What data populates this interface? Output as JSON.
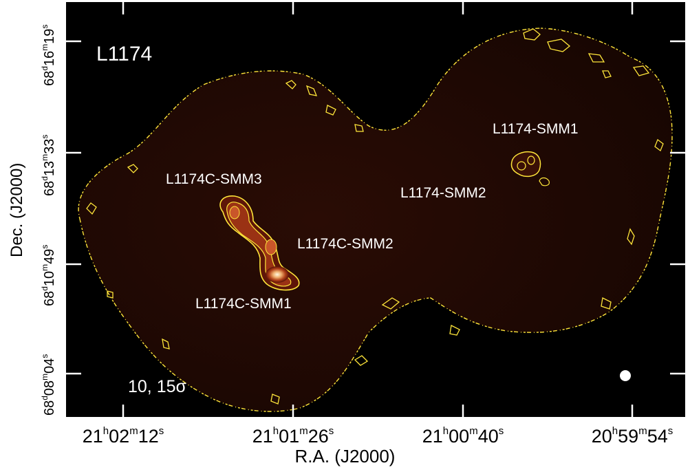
{
  "figure": {
    "field_name": "L1174",
    "sigma_label": "10, 15σ",
    "x_axis_title": "R.A. (J2000)",
    "y_axis_title": "Dec. (J2000)",
    "x_ticks": [
      {
        "h": "21",
        "m": "02",
        "s": "12"
      },
      {
        "h": "21",
        "m": "01",
        "s": "26"
      },
      {
        "h": "21",
        "m": "00",
        "s": "40"
      },
      {
        "h": "20",
        "m": "59",
        "s": "54"
      }
    ],
    "y_ticks": [
      {
        "d": "68",
        "m": "16",
        "s": "19"
      },
      {
        "d": "68",
        "m": "13",
        "s": "33"
      },
      {
        "d": "68",
        "m": "10",
        "s": "49"
      },
      {
        "d": "68",
        "m": "08",
        "s": "04"
      }
    ],
    "sources": [
      {
        "name": "L1174-SMM1"
      },
      {
        "name": "L1174-SMM2"
      },
      {
        "name": "L1174C-SMM3"
      },
      {
        "name": "L1174C-SMM2"
      },
      {
        "name": "L1174C-SMM1"
      }
    ],
    "colors": {
      "background": "#000000",
      "map_emission": "#1c0703",
      "contour": "#ffe63a",
      "core_bright": "#fff4d6",
      "core_mid": "#d9652a",
      "core_dark": "#7a1d0a"
    },
    "beam_icon": "beam-circle"
  }
}
